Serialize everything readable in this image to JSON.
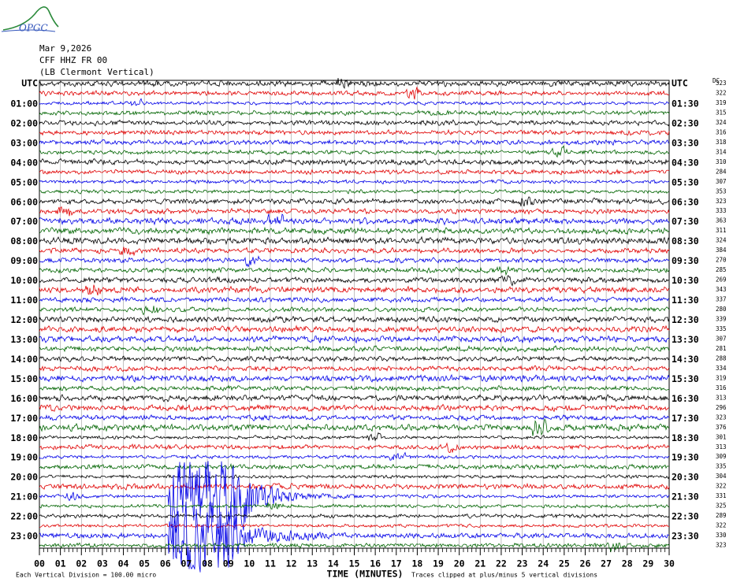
{
  "logo": "OPGC",
  "header": {
    "date": "Mar 9,2026",
    "station": "CFF HHZ FR 00",
    "location": "(LB Clermont Vertical)"
  },
  "left_labels": [
    "UTC",
    "01:00",
    "02:00",
    "03:00",
    "04:00",
    "05:00",
    "06:00",
    "07:00",
    "08:00",
    "09:00",
    "10:00",
    "11:00",
    "12:00",
    "13:00",
    "14:00",
    "15:00",
    "16:00",
    "17:00",
    "18:00",
    "19:00",
    "20:00",
    "21:00",
    "22:00",
    "23:00"
  ],
  "right_labels": [
    "UTC",
    "01:30",
    "02:30",
    "03:30",
    "04:30",
    "05:30",
    "06:30",
    "07:30",
    "08:30",
    "09:30",
    "10:30",
    "11:30",
    "12:30",
    "13:30",
    "14:30",
    "15:30",
    "16:30",
    "17:30",
    "18:30",
    "19:30",
    "20:30",
    "21:30",
    "22:30",
    "23:30"
  ],
  "dc_header": "DC",
  "dc_values": [
    323,
    322,
    319,
    315,
    324,
    316,
    318,
    314,
    310,
    284,
    307,
    353,
    323,
    333,
    363,
    311,
    324,
    384,
    270,
    285,
    269,
    343,
    337,
    280,
    339,
    335,
    307,
    281,
    288,
    334,
    319,
    316,
    313,
    296,
    323,
    376,
    301,
    313,
    309,
    335,
    304,
    322,
    331,
    325,
    289,
    322,
    330,
    323
  ],
  "x_ticks": [
    "00",
    "01",
    "02",
    "03",
    "04",
    "05",
    "06",
    "07",
    "08",
    "09",
    "10",
    "11",
    "12",
    "13",
    "14",
    "15",
    "16",
    "17",
    "18",
    "19",
    "20",
    "21",
    "22",
    "23",
    "24",
    "25",
    "26",
    "27",
    "28",
    "29",
    "30"
  ],
  "x_label": "TIME (MINUTES)",
  "footer_left": "Each Vertical Division =  100.00 micro",
  "footer_right": "Traces clipped at plus/minus 5 vertical divisions"
}
